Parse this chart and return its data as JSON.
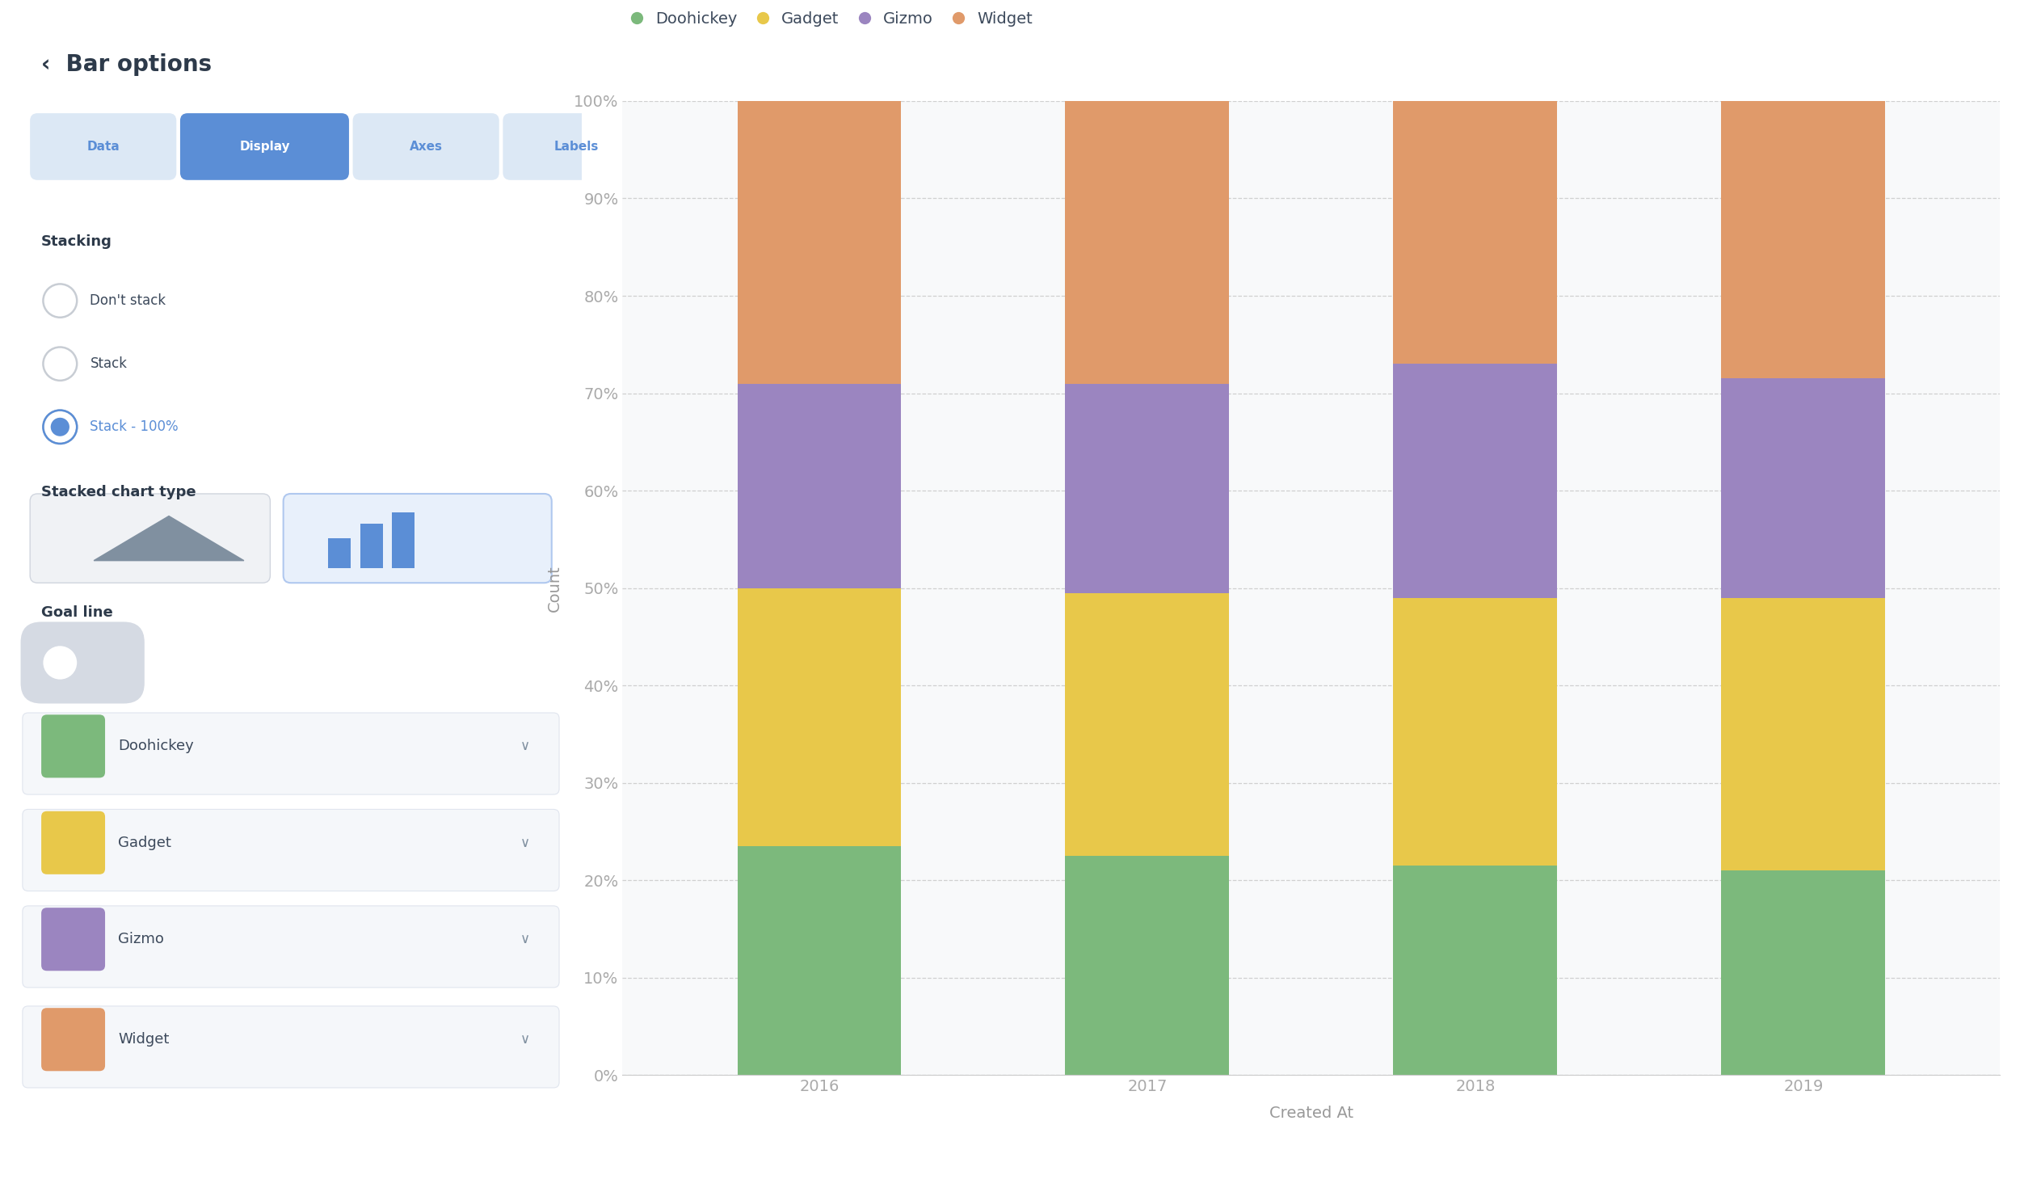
{
  "years": [
    "2016",
    "2017",
    "2018",
    "2019"
  ],
  "categories": [
    "Doohickey",
    "Gadget",
    "Gizmo",
    "Widget"
  ],
  "colors": [
    "#7cb97c",
    "#e8c84a",
    "#9b85c0",
    "#e09a6a"
  ],
  "values": {
    "Doohickey": [
      23.5,
      22.5,
      21.5,
      21.0
    ],
    "Gadget": [
      26.5,
      27.0,
      27.5,
      28.0
    ],
    "Gizmo": [
      21.0,
      21.5,
      24.0,
      22.5
    ],
    "Widget": [
      29.0,
      29.0,
      27.0,
      28.5
    ]
  },
  "ylabel": "Count",
  "xlabel": "Created At",
  "ytick_labels": [
    "0%",
    "10%",
    "20%",
    "30%",
    "40%",
    "50%",
    "60%",
    "70%",
    "80%",
    "90%",
    "100%"
  ],
  "ytick_values": [
    0,
    10,
    20,
    30,
    40,
    50,
    60,
    70,
    80,
    90,
    100
  ],
  "background_color": "#ffffff",
  "chart_bg": "#f8f9fa",
  "grid_color": "#d0d0d0",
  "bar_width": 0.5,
  "axis_label_color": "#999999",
  "tick_color": "#aaaaaa",
  "sidebar_title_color": "#2d3a4a",
  "sidebar_blue": "#5b8ed6",
  "sidebar_text_color": "#3d4a5c",
  "sidebar_radio_gray": "#c8cdd4",
  "button_bg_active": "#5b8ed6",
  "button_bg_inactive": "#dce8f5",
  "button_text_active": "#ffffff",
  "button_text_inactive": "#5b8ed6"
}
